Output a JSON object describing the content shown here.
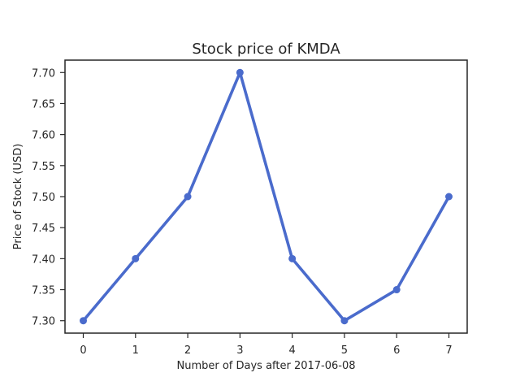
{
  "chart_data": {
    "type": "line",
    "title": "Stock price of KMDA",
    "xlabel": "Number of Days after 2017-06-08",
    "ylabel": "Price of Stock (USD)",
    "x": [
      0,
      1,
      2,
      3,
      4,
      5,
      6,
      7
    ],
    "series": [
      {
        "values": [
          7.3,
          7.4,
          7.5,
          7.7,
          7.4,
          7.3,
          7.35,
          7.5
        ]
      }
    ],
    "xlim": [
      -0.35,
      7.35
    ],
    "ylim": [
      7.28,
      7.72
    ],
    "xticks": [
      "0",
      "1",
      "2",
      "3",
      "4",
      "5",
      "6",
      "7"
    ],
    "yticks": [
      "7.30",
      "7.35",
      "7.40",
      "7.45",
      "7.50",
      "7.55",
      "7.60",
      "7.65",
      "7.70"
    ],
    "grid": false,
    "line_color": "#4a6bcc",
    "axis_color": "#262626"
  }
}
